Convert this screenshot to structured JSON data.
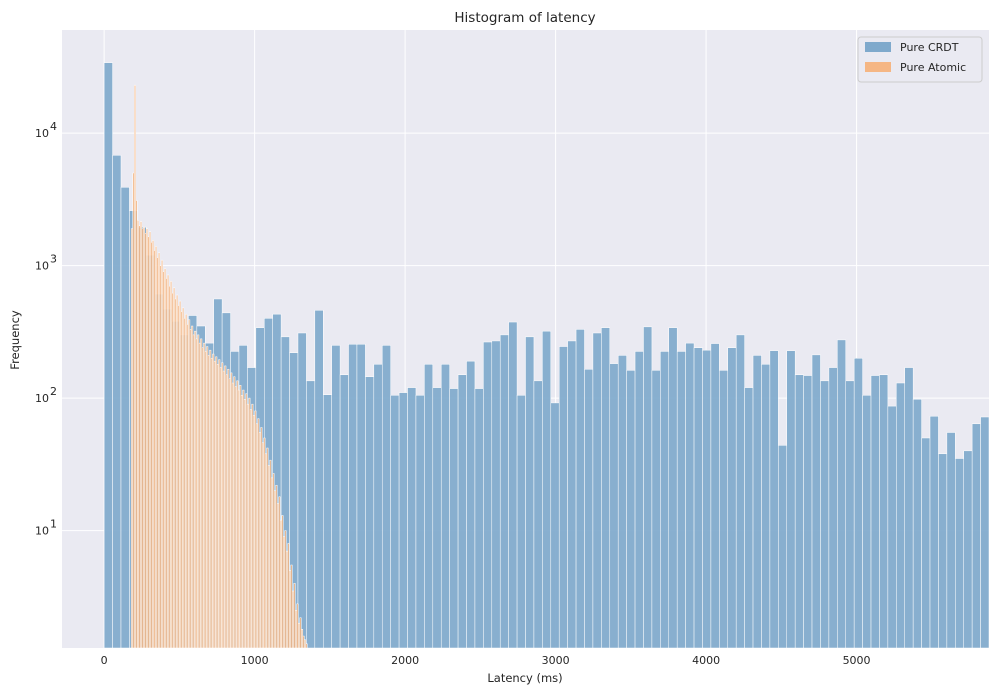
{
  "chart_data": {
    "type": "bar",
    "title": "Histogram of latency",
    "xlabel": "Latency (ms)",
    "ylabel": "Frequency",
    "xlim": [
      -280,
      5880
    ],
    "ylim": [
      1.3,
      60000
    ],
    "yscale": "log",
    "grid": true,
    "legend_position": "top-right",
    "x_ticks": [
      0,
      1000,
      2000,
      3000,
      4000,
      5000
    ],
    "x_tick_labels": [
      "0",
      "1000",
      "2000",
      "3000",
      "4000",
      "5000"
    ],
    "y_ticks": [
      10,
      100,
      1000,
      10000
    ],
    "y_tick_bases": [
      "10",
      "10",
      "10",
      "10"
    ],
    "y_tick_exponents": [
      "1",
      "2",
      "3",
      "4"
    ],
    "series": [
      {
        "name": "Pure CRDT",
        "color": "#7fa9cc",
        "bin_start": 0,
        "bin_width": 56,
        "values": [
          34000,
          6800,
          3900,
          2600,
          1950,
          1200,
          610,
          470,
          380,
          300,
          420,
          350,
          260,
          560,
          440,
          225,
          250,
          170,
          340,
          400,
          430,
          290,
          220,
          310,
          135,
          460,
          106,
          250,
          150,
          255,
          255,
          145,
          180,
          250,
          105,
          110,
          120,
          105,
          180,
          120,
          180,
          118,
          150,
          190,
          118,
          265,
          270,
          300,
          375,
          105,
          290,
          135,
          320,
          92,
          245,
          270,
          330,
          165,
          310,
          340,
          182,
          210,
          162,
          225,
          345,
          162,
          225,
          340,
          225,
          260,
          240,
          230,
          258,
          162,
          240,
          300,
          120,
          210,
          180,
          228,
          44,
          228,
          150,
          148,
          212,
          135,
          170,
          275,
          135,
          200,
          105,
          148,
          150,
          87,
          130,
          170,
          98,
          50,
          73,
          38,
          55,
          35,
          40,
          64,
          72
        ]
      },
      {
        "name": "Pure Atomic",
        "color": "#f5b684",
        "bin_start": 180,
        "bin_width": 10,
        "values": [
          1900,
          5000,
          23000,
          3100,
          2200,
          2000,
          2150,
          1900,
          1950,
          1750,
          1900,
          1650,
          1800,
          1500,
          1550,
          1300,
          1400,
          1150,
          1250,
          1000,
          1100,
          900,
          950,
          800,
          850,
          700,
          760,
          620,
          680,
          560,
          600,
          500,
          540,
          450,
          480,
          400,
          430,
          360,
          390,
          330,
          350,
          300,
          320,
          280,
          300,
          260,
          280,
          240,
          260,
          225,
          245,
          210,
          230,
          200,
          215,
          190,
          205,
          180,
          195,
          170,
          185,
          160,
          175,
          150,
          165,
          140,
          155,
          130,
          145,
          122,
          135,
          115,
          125,
          105,
          115,
          98,
          108,
          90,
          100,
          82,
          90,
          74,
          80,
          64,
          70,
          55,
          60,
          46,
          50,
          38,
          42,
          31,
          34,
          25,
          27,
          20,
          22,
          16,
          18,
          12,
          13,
          9,
          10,
          7,
          8,
          5,
          5.5,
          3.5,
          4,
          2.5,
          2.8,
          2,
          2.2,
          1.8,
          1.6,
          1.5,
          1.4,
          1.3,
          1.3
        ]
      }
    ]
  }
}
